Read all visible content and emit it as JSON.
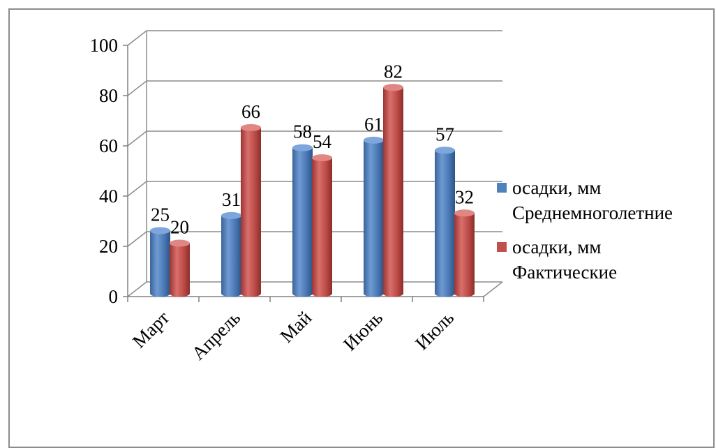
{
  "chart_data": {
    "type": "bar",
    "title": "",
    "xlabel": "",
    "ylabel": "",
    "categories": [
      "Март",
      "Апрель",
      "Май",
      "Июнь",
      "Июль"
    ],
    "ylim": [
      0,
      100
    ],
    "yticks": [
      0,
      20,
      40,
      60,
      80,
      100
    ],
    "grid": true,
    "legend_position": "right",
    "style": "3d-cylinder",
    "series": [
      {
        "name_lines": [
          "осадки, мм",
          "Среднемноголетние"
        ],
        "color": "#4f81bd",
        "values": [
          25,
          31,
          58,
          61,
          57
        ]
      },
      {
        "name_lines": [
          "осадки, мм",
          "Фактические"
        ],
        "color": "#c0504d",
        "values": [
          20,
          66,
          54,
          82,
          32
        ]
      }
    ]
  }
}
